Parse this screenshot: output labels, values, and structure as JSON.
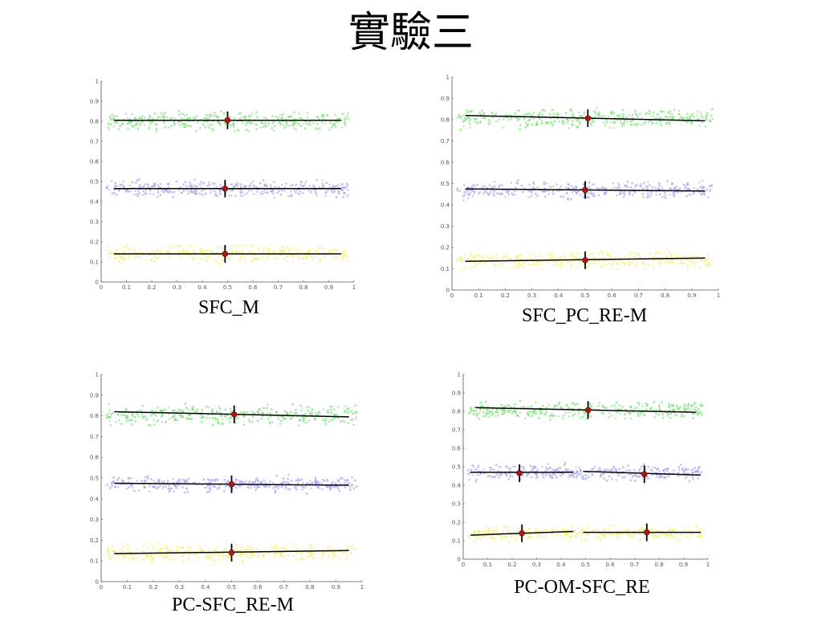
{
  "slide": {
    "title": "實驗三"
  },
  "colors": {
    "green": "#7fe07f",
    "blue": "#a7a7ee",
    "yellow": "#f1f27a",
    "fit_line": "#000000",
    "centroid": "#b01515"
  },
  "chart_data": [
    {
      "type": "scatter",
      "caption": "SFC_M",
      "xlim": [
        0,
        1
      ],
      "ylim": [
        0,
        1
      ],
      "x_ticks": [
        "0",
        "0.1",
        "0.2",
        "0.3",
        "0.4",
        "0.5",
        "0.6",
        "0.7",
        "0.8",
        "0.9",
        "1"
      ],
      "y_ticks": [
        "0",
        "0.1",
        "0.2",
        "0.3",
        "0.4",
        "0.5",
        "0.6",
        "0.7",
        "0.8",
        "0.9",
        "1"
      ],
      "clusters": [
        {
          "color": "green",
          "y_center": 0.8,
          "y_spread": 0.04,
          "x_range": [
            0.02,
            0.98
          ]
        },
        {
          "color": "blue",
          "y_center": 0.465,
          "y_spread": 0.035,
          "x_range": [
            0.02,
            0.98
          ]
        },
        {
          "color": "yellow",
          "y_center": 0.14,
          "y_spread": 0.035,
          "x_range": [
            0.02,
            0.98
          ]
        }
      ],
      "fit_lines": [
        {
          "x": [
            0.05,
            0.95
          ],
          "y": [
            0.805,
            0.805
          ]
        },
        {
          "x": [
            0.05,
            0.95
          ],
          "y": [
            0.465,
            0.465
          ]
        },
        {
          "x": [
            0.05,
            0.95
          ],
          "y": [
            0.14,
            0.14
          ]
        }
      ],
      "centroids": [
        {
          "x": 0.5,
          "y": 0.805
        },
        {
          "x": 0.49,
          "y": 0.465
        },
        {
          "x": 0.49,
          "y": 0.14
        }
      ]
    },
    {
      "type": "scatter",
      "caption": "SFC_PC_RE-M",
      "xlim": [
        0,
        1
      ],
      "ylim": [
        0,
        1
      ],
      "x_ticks": [
        "0",
        "0.1",
        "0.2",
        "0.3",
        "0.4",
        "0.5",
        "0.6",
        "0.7",
        "0.8",
        "0.9",
        "1"
      ],
      "y_ticks": [
        "0",
        "0.1",
        "0.2",
        "0.3",
        "0.4",
        "0.5",
        "0.6",
        "0.7",
        "0.8",
        "0.9",
        "1"
      ],
      "clusters": [
        {
          "color": "green",
          "y_center": 0.805,
          "y_spread": 0.04,
          "x_range": [
            0.02,
            0.98
          ]
        },
        {
          "color": "blue",
          "y_center": 0.47,
          "y_spread": 0.035,
          "x_range": [
            0.02,
            0.98
          ]
        },
        {
          "color": "yellow",
          "y_center": 0.14,
          "y_spread": 0.035,
          "x_range": [
            0.02,
            0.98
          ]
        }
      ],
      "fit_lines": [
        {
          "x": [
            0.05,
            0.95
          ],
          "y": [
            0.82,
            0.795
          ]
        },
        {
          "x": [
            0.05,
            0.95
          ],
          "y": [
            0.475,
            0.465
          ]
        },
        {
          "x": [
            0.05,
            0.95
          ],
          "y": [
            0.135,
            0.15
          ]
        }
      ],
      "centroids": [
        {
          "x": 0.51,
          "y": 0.807
        },
        {
          "x": 0.5,
          "y": 0.47
        },
        {
          "x": 0.5,
          "y": 0.14
        }
      ]
    },
    {
      "type": "scatter",
      "caption": "PC-SFC_RE-M",
      "xlim": [
        0,
        1
      ],
      "ylim": [
        0,
        1
      ],
      "x_ticks": [
        "0",
        "0.1",
        "0.2",
        "0.3",
        "0.4",
        "0.5",
        "0.6",
        "0.7",
        "0.8",
        "0.9",
        "1"
      ],
      "y_ticks": [
        "0",
        "0.1",
        "0.2",
        "0.3",
        "0.4",
        "0.5",
        "0.6",
        "0.7",
        "0.8",
        "0.9",
        "1"
      ],
      "clusters": [
        {
          "color": "green",
          "y_center": 0.805,
          "y_spread": 0.04,
          "x_range": [
            0.02,
            0.98
          ]
        },
        {
          "color": "blue",
          "y_center": 0.47,
          "y_spread": 0.035,
          "x_range": [
            0.02,
            0.98
          ]
        },
        {
          "color": "yellow",
          "y_center": 0.14,
          "y_spread": 0.035,
          "x_range": [
            0.02,
            0.98
          ]
        }
      ],
      "fit_lines": [
        {
          "x": [
            0.05,
            0.95
          ],
          "y": [
            0.82,
            0.795
          ]
        },
        {
          "x": [
            0.05,
            0.95
          ],
          "y": [
            0.475,
            0.465
          ]
        },
        {
          "x": [
            0.05,
            0.95
          ],
          "y": [
            0.135,
            0.15
          ]
        }
      ],
      "centroids": [
        {
          "x": 0.51,
          "y": 0.807
        },
        {
          "x": 0.5,
          "y": 0.47
        },
        {
          "x": 0.5,
          "y": 0.14
        }
      ]
    },
    {
      "type": "scatter",
      "caption": "PC-OM-SFC_RE",
      "xlim": [
        0,
        1
      ],
      "ylim": [
        0,
        1
      ],
      "x_ticks": [
        "0",
        "0.1",
        "0.2",
        "0.3",
        "0.4",
        "0.5",
        "0.6",
        "0.7",
        "0.8",
        "0.9",
        "1"
      ],
      "y_ticks": [
        "0",
        "0.1",
        "0.2",
        "0.3",
        "0.4",
        "0.5",
        "0.6",
        "0.7",
        "0.8",
        "0.9",
        "1"
      ],
      "clusters": [
        {
          "color": "green",
          "y_center": 0.805,
          "y_spread": 0.04,
          "x_range": [
            0.02,
            0.98
          ]
        },
        {
          "color": "blue",
          "y_center": 0.47,
          "y_spread": 0.035,
          "x_range": [
            0.02,
            0.98
          ]
        },
        {
          "color": "yellow",
          "y_center": 0.14,
          "y_spread": 0.035,
          "x_range": [
            0.02,
            0.98
          ]
        }
      ],
      "fit_lines": [
        {
          "x": [
            0.05,
            0.95
          ],
          "y": [
            0.82,
            0.795
          ]
        },
        {
          "x": [
            0.03,
            0.45
          ],
          "y": [
            0.47,
            0.47
          ]
        },
        {
          "x": [
            0.49,
            0.97
          ],
          "y": [
            0.475,
            0.455
          ]
        },
        {
          "x": [
            0.03,
            0.45
          ],
          "y": [
            0.13,
            0.15
          ]
        },
        {
          "x": [
            0.49,
            0.97
          ],
          "y": [
            0.145,
            0.145
          ]
        }
      ],
      "centroids": [
        {
          "x": 0.51,
          "y": 0.807
        },
        {
          "x": 0.23,
          "y": 0.465
        },
        {
          "x": 0.74,
          "y": 0.46
        },
        {
          "x": 0.24,
          "y": 0.14
        },
        {
          "x": 0.75,
          "y": 0.145
        }
      ]
    }
  ]
}
